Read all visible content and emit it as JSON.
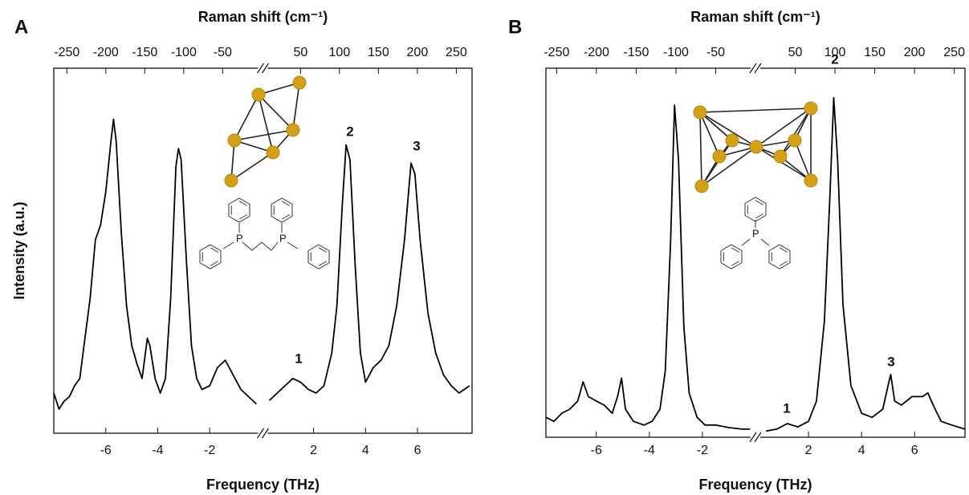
{
  "chart_data": [
    {
      "type": "line",
      "panel": "A",
      "x_label": "Frequency (THz)",
      "x2_label": "Raman shift (cm⁻¹)",
      "y_label": "Intensity (a.u.)",
      "x": [
        -8,
        -7.8,
        -7.6,
        -7.4,
        -7.2,
        -7,
        -6.8,
        -6.6,
        -6.4,
        -6.2,
        -6,
        -5.8,
        -5.7,
        -5.6,
        -5.4,
        -5.2,
        -5,
        -4.8,
        -4.6,
        -4.4,
        -4.3,
        -4.1,
        -3.9,
        -3.7,
        -3.5,
        -3.3,
        -3.2,
        -3.1,
        -2.9,
        -2.7,
        -2.5,
        -2.3,
        -2,
        -1.7,
        -1.4,
        -1.1,
        -0.8,
        -0.5,
        -0.2,
        0,
        0.3,
        0.6,
        0.9,
        1.2,
        1.5,
        1.8,
        2.1,
        2.4,
        2.7,
        2.9,
        3.1,
        3.25,
        3.4,
        3.6,
        3.8,
        4,
        4.3,
        4.6,
        4.9,
        5.2,
        5.5,
        5.75,
        5.9,
        6.1,
        6.4,
        6.7,
        7,
        7.3,
        7.6,
        8
      ],
      "series": [
        {
          "color": "#000000",
          "values": [
            11,
            6.6,
            8.8,
            10,
            13,
            15,
            26,
            37,
            53,
            57,
            66,
            80,
            86,
            80,
            55,
            35,
            24,
            19,
            15,
            26,
            24,
            15,
            11,
            15,
            37,
            73,
            78,
            75,
            48,
            24,
            15,
            12,
            13,
            18,
            20,
            16,
            12,
            10,
            8,
            null,
            9,
            11,
            13,
            15,
            14,
            12,
            11,
            13,
            22,
            35,
            62,
            79,
            75,
            46,
            22,
            14,
            18,
            20,
            24,
            35,
            53,
            74,
            71,
            53,
            33,
            22,
            16,
            13,
            11,
            13
          ]
        }
      ],
      "xlim": [
        -8,
        8.1
      ],
      "xticks": [
        -6,
        -4,
        -2,
        2,
        4,
        6
      ],
      "x2lim": [
        -266.8,
        270.2
      ],
      "x2ticks": [
        -250,
        -200,
        -150,
        -100,
        -50,
        50,
        100,
        150,
        200,
        250
      ],
      "ylim": [
        0,
        100
      ],
      "annotations": [
        "1",
        "2",
        "3"
      ]
    },
    {
      "type": "line",
      "panel": "B",
      "x_label": "Frequency (THz)",
      "x2_label": "Raman shift (cm⁻¹)",
      "x": [
        -7.9,
        -7.6,
        -7.3,
        -7,
        -6.7,
        -6.5,
        -6.3,
        -6,
        -5.7,
        -5.4,
        -5.2,
        -5.05,
        -4.9,
        -4.6,
        -4.2,
        -3.9,
        -3.6,
        -3.4,
        -3.2,
        -3.05,
        -2.9,
        -2.7,
        -2.5,
        -2.2,
        -1.9,
        -1.5,
        -1,
        -0.5,
        -0.2,
        0,
        0.4,
        0.8,
        1.2,
        1.6,
        2,
        2.3,
        2.6,
        2.8,
        2.95,
        3.1,
        3.3,
        3.6,
        4,
        4.4,
        4.8,
        5,
        5.1,
        5.25,
        5.5,
        5.9,
        6.3,
        6.5,
        6.7,
        7,
        7.4,
        7.9
      ],
      "series": [
        {
          "color": "#000000",
          "values": [
            5.4,
            4.3,
            6.5,
            7.6,
            9.8,
            15,
            11,
            9.8,
            8.7,
            6.5,
            11,
            16,
            7.6,
            4.3,
            3.3,
            4.3,
            7.6,
            18,
            53,
            90,
            75,
            30,
            12,
            5.4,
            3.3,
            3.3,
            2.6,
            2.2,
            2.2,
            null,
            1.7,
            2.2,
            3.7,
            2.8,
            4.3,
            9.8,
            31.5,
            64,
            92,
            75,
            36,
            14,
            6.5,
            5.4,
            7.6,
            14,
            17,
            9.8,
            8.7,
            11,
            11,
            12,
            8.7,
            4.3,
            3.3,
            2.2
          ]
        }
      ],
      "xlim": [
        -7.9,
        7.9
      ],
      "xticks": [
        -6,
        -4,
        -2,
        2,
        4,
        6
      ],
      "x2lim": [
        -263.5,
        263.5
      ],
      "x2ticks": [
        -250,
        -200,
        -150,
        -100,
        -50,
        50,
        100,
        150,
        200,
        250
      ],
      "ylim": [
        0,
        100
      ],
      "annotations": [
        "1",
        "2",
        "3"
      ]
    }
  ]
}
